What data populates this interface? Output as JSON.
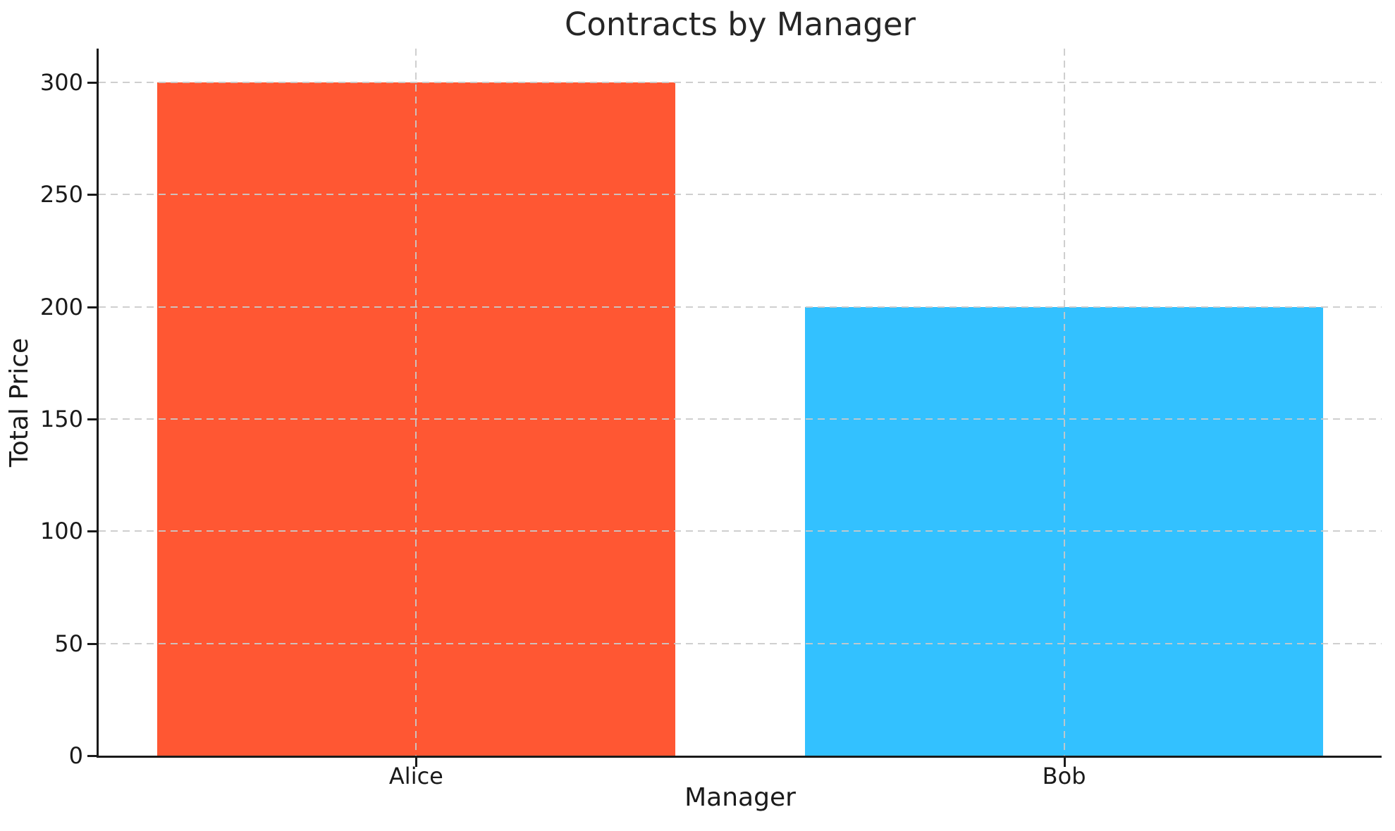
{
  "chart_data": {
    "type": "bar",
    "title": "Contracts by Manager",
    "xlabel": "Manager",
    "ylabel": "Total Price",
    "categories": [
      "Alice",
      "Bob"
    ],
    "values": [
      300,
      200
    ],
    "bar_colors": [
      "#FF5733",
      "#33C1FF"
    ],
    "yticks": [
      0,
      50,
      100,
      150,
      200,
      250,
      300
    ],
    "ytick_labels": [
      "0",
      "50",
      "100",
      "150",
      "200",
      "250",
      "300"
    ],
    "ylim": [
      0,
      315
    ],
    "xlim": [
      -0.49,
      1.49
    ],
    "bar_width_fraction": 0.8,
    "grid": "dashed horizontal and vertical gridlines drawn above bars",
    "legend": "none",
    "colors": {
      "grid": "#cccccc",
      "axis": "#1a1a1a",
      "text": "#262626",
      "background": "#ffffff"
    }
  }
}
